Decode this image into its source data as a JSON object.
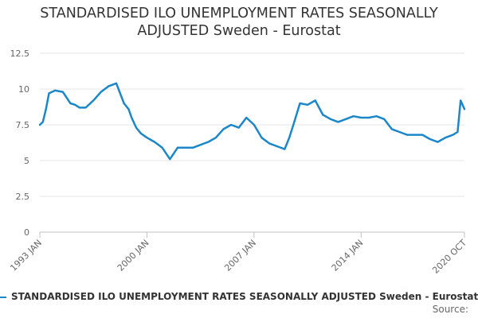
{
  "colors": {
    "series": "#1b87c9",
    "grid": "#e6e6e6",
    "axis": "#c0c0c0",
    "text": "#666666"
  },
  "chart_data": {
    "type": "line",
    "title": "STANDARDISED ILO UNEMPLOYMENT RATES SEASONALLY ADJUSTED Sweden - Eurostat",
    "title_lines": [
      "STANDARDISED ILO UNEMPLOYMENT RATES SEASONALLY",
      "ADJUSTED Sweden - Eurostat"
    ],
    "xlabel": "",
    "ylabel": "",
    "x_range": [
      1993.0,
      2020.75
    ],
    "ylim": [
      0,
      12.5
    ],
    "yticks": [
      0,
      2.5,
      5,
      7.5,
      10,
      12.5
    ],
    "ytick_labels": [
      "0",
      "2.5",
      "5",
      "7.5",
      "10",
      "12.5"
    ],
    "xticks": [
      {
        "value": 1993.0,
        "label": "1993 JAN"
      },
      {
        "value": 2000.0,
        "label": "2000 JAN"
      },
      {
        "value": 2007.0,
        "label": "2007 JAN"
      },
      {
        "value": 2014.0,
        "label": "2014 JAN"
      },
      {
        "value": 2020.75,
        "label": "2020 OCT"
      }
    ],
    "grid": true,
    "legend": "bottom",
    "series": [
      {
        "name": "STANDARDISED ILO UNEMPLOYMENT RATES SEASONALLY ADJUSTED Sweden - Eurostat",
        "x": [
          1993.0,
          1993.2,
          1993.4,
          1993.6,
          1994.0,
          1994.5,
          1995.0,
          1995.3,
          1995.6,
          1996.0,
          1996.5,
          1997.0,
          1997.5,
          1998.0,
          1998.5,
          1998.8,
          1999.0,
          1999.3,
          1999.6,
          2000.0,
          2000.5,
          2001.0,
          2001.5,
          2002.0,
          2002.5,
          2003.0,
          2003.5,
          2004.0,
          2004.5,
          2005.0,
          2005.5,
          2006.0,
          2006.5,
          2007.0,
          2007.5,
          2008.0,
          2008.5,
          2009.0,
          2009.3,
          2009.6,
          2010.0,
          2010.5,
          2011.0,
          2011.5,
          2012.0,
          2012.5,
          2013.0,
          2013.5,
          2014.0,
          2014.5,
          2015.0,
          2015.5,
          2016.0,
          2016.5,
          2017.0,
          2017.5,
          2018.0,
          2018.5,
          2019.0,
          2019.5,
          2020.0,
          2020.3,
          2020.5,
          2020.75
        ],
        "values": [
          7.5,
          7.7,
          8.6,
          9.7,
          9.9,
          9.8,
          9.0,
          8.9,
          8.7,
          8.7,
          9.2,
          9.8,
          10.2,
          10.4,
          9.0,
          8.6,
          8.0,
          7.3,
          6.9,
          6.6,
          6.3,
          5.9,
          5.1,
          5.9,
          5.9,
          5.9,
          6.1,
          6.3,
          6.6,
          7.2,
          7.5,
          7.3,
          8.0,
          7.5,
          6.6,
          6.2,
          6.0,
          5.8,
          6.6,
          7.6,
          9.0,
          8.9,
          9.2,
          8.2,
          7.9,
          7.7,
          7.9,
          8.1,
          8.0,
          8.0,
          8.1,
          7.9,
          7.2,
          7.0,
          6.8,
          6.8,
          6.8,
          6.5,
          6.3,
          6.6,
          6.8,
          7.0,
          9.2,
          8.6
        ]
      }
    ]
  },
  "source_label": "Source:"
}
